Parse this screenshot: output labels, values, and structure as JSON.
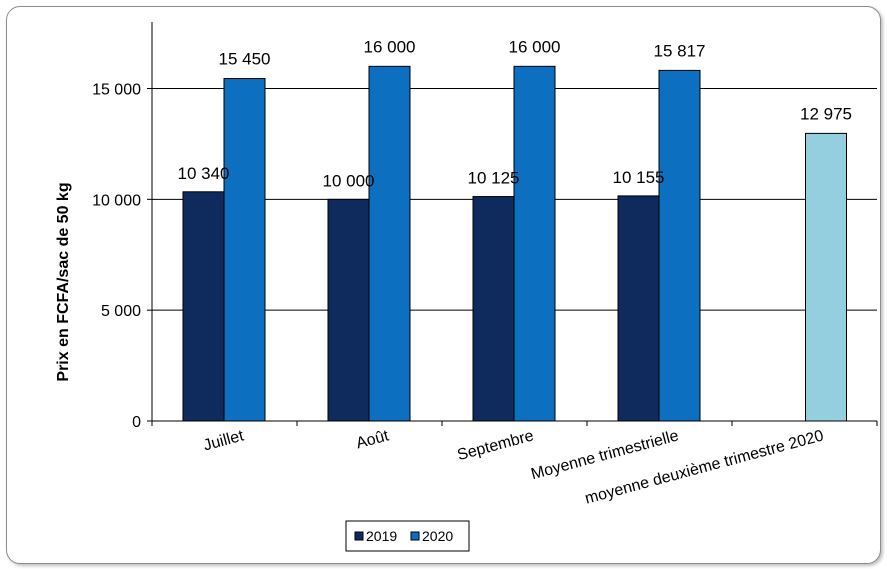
{
  "chart_data": {
    "type": "bar",
    "ylabel": "Prix en FCFA/sac de 50 kg",
    "xlabel": "",
    "title": "",
    "ylim": [
      0,
      18000
    ],
    "yticks": [
      0,
      5000,
      10000,
      15000
    ],
    "ytick_labels": [
      "0",
      "5 000",
      "10 000",
      "15 000"
    ],
    "grid": true,
    "legend_position": "bottom-center",
    "categories": [
      "Juillet",
      "Août",
      "Septembre",
      "Moyenne trimestrielle",
      "moyenne deuxième trimestre 2020"
    ],
    "series": [
      {
        "name": "2019",
        "color": "#0f2a5c",
        "values": [
          10340,
          10000,
          10125,
          10155,
          null
        ],
        "labels": [
          "10 340",
          "10 000",
          "10 125",
          "10 155",
          ""
        ]
      },
      {
        "name": "2020",
        "color": "#0d6fc0",
        "values": [
          15450,
          16000,
          16000,
          15817,
          null
        ],
        "labels": [
          "15 450",
          "16 000",
          "16 000",
          "15 817",
          ""
        ]
      },
      {
        "color": "#94cfdf",
        "values": [
          null,
          null,
          null,
          null,
          12975
        ],
        "labels": [
          "",
          "",
          "",
          "",
          "12 975"
        ]
      }
    ]
  }
}
